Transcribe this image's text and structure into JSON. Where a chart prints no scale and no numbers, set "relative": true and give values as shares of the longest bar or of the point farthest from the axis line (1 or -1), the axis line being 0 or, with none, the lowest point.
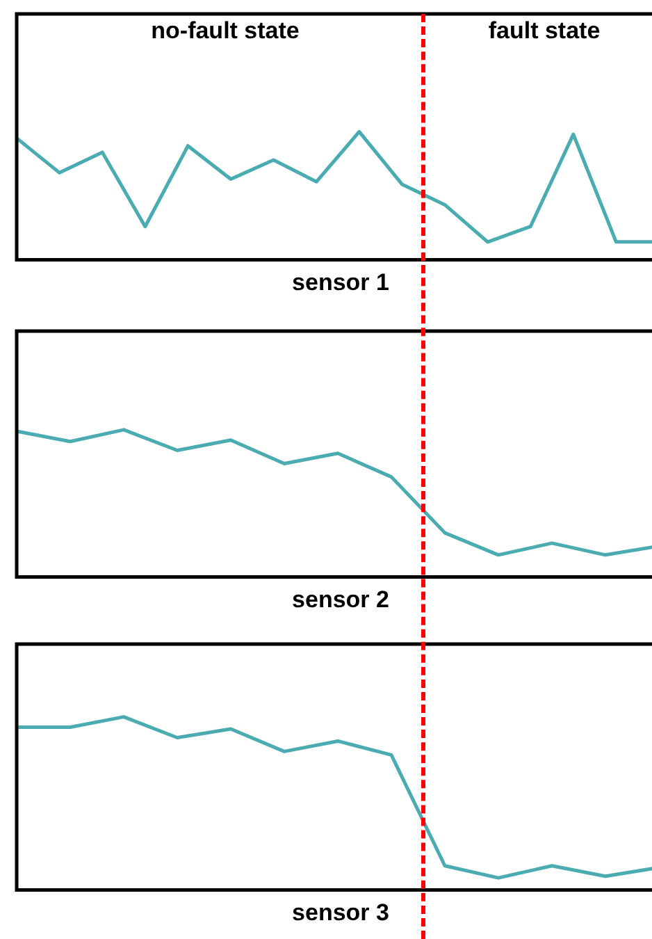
{
  "chart_data": [
    {
      "type": "line",
      "xlabel": "sensor 1",
      "relative": true,
      "grid": false,
      "marker": "none",
      "annotations": [
        "no-fault state",
        "fault state"
      ],
      "categories": [
        null,
        null,
        null,
        null,
        null,
        null,
        null,
        null,
        null,
        null,
        null,
        null,
        null,
        null,
        null,
        null
      ],
      "series": [
        {
          "color": "#4aacb0",
          "values": [
            0.95,
            0.68,
            0.84,
            0.26,
            0.89,
            0.63,
            0.78,
            0.61,
            1,
            0.59,
            0.43,
            0.14,
            0.26,
            0.98,
            0.14,
            0.14
          ]
        }
      ]
    },
    {
      "type": "line",
      "xlabel": "sensor 2",
      "relative": true,
      "grid": false,
      "marker": "none",
      "categories": [
        null,
        null,
        null,
        null,
        null,
        null,
        null,
        null,
        null,
        null,
        null,
        null,
        null
      ],
      "series": [
        {
          "color": "#4aacb0",
          "values": [
            0.99,
            0.92,
            1,
            0.86,
            0.93,
            0.77,
            0.84,
            0.68,
            0.3,
            0.15,
            0.23,
            0.15,
            0.21
          ]
        }
      ]
    },
    {
      "type": "line",
      "xlabel": "sensor 3",
      "relative": true,
      "grid": false,
      "marker": "none",
      "categories": [
        null,
        null,
        null,
        null,
        null,
        null,
        null,
        null,
        null,
        null,
        null,
        null,
        null
      ],
      "series": [
        {
          "color": "#4aacb0",
          "values": [
            0.94,
            0.94,
            1,
            0.88,
            0.93,
            0.8,
            0.86,
            0.78,
            0.14,
            0.07,
            0.14,
            0.08,
            0.13
          ]
        }
      ]
    }
  ]
}
